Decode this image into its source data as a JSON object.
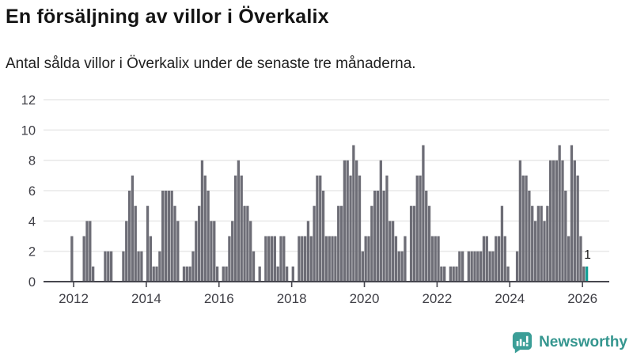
{
  "header": {
    "title": "En försäljning av villor i Överkalix",
    "subtitle": "Antal sålda villor i Överkalix under de senaste tre månaderna."
  },
  "footer": {
    "brand": "Newsworthy",
    "brand_color": "#35968F",
    "icon": "newsworthy-speech-bubble-bar-chart-icon",
    "icon_color": "#3B9E97"
  },
  "chart_data": {
    "type": "bar",
    "title": "En försäljning av villor i Överkalix",
    "subtitle": "Antal sålda villor i Överkalix under de senaste tre månaderna.",
    "unit": "sålda villor (rullande 3 månader)",
    "start_month": "2011-12",
    "ylim": [
      0,
      12
    ],
    "yticks": [
      0,
      2,
      4,
      6,
      8,
      10,
      12
    ],
    "grid": true,
    "x_tick_labels": [
      "2012",
      "2014",
      "2016",
      "2018",
      "2020",
      "2022",
      "2024",
      "2026"
    ],
    "bar_color": "#6D6D76",
    "axis_color": "#46464E",
    "grid_color": "#E8E8E8",
    "tick_label_color": "#3F3F46",
    "values": [
      3,
      0,
      0,
      0,
      3,
      4,
      4,
      1,
      0,
      0,
      0,
      2,
      2,
      2,
      0,
      0,
      0,
      2,
      4,
      6,
      7,
      5,
      2,
      2,
      0,
      5,
      3,
      1,
      1,
      2,
      6,
      6,
      6,
      6,
      5,
      4,
      0,
      1,
      1,
      1,
      2,
      4,
      5,
      8,
      7,
      6,
      4,
      4,
      1,
      0,
      1,
      1,
      3,
      4,
      7,
      8,
      7,
      5,
      5,
      4,
      2,
      0,
      1,
      0,
      3,
      3,
      3,
      3,
      1,
      3,
      3,
      1,
      0,
      1,
      0,
      3,
      3,
      3,
      4,
      3,
      5,
      7,
      7,
      6,
      3,
      3,
      3,
      3,
      5,
      5,
      8,
      8,
      7,
      9,
      8,
      7,
      2,
      3,
      3,
      5,
      6,
      6,
      8,
      6,
      7,
      4,
      4,
      3,
      2,
      2,
      3,
      0,
      5,
      5,
      7,
      7,
      9,
      6,
      5,
      3,
      3,
      3,
      1,
      1,
      0,
      1,
      1,
      1,
      2,
      2,
      0,
      2,
      2,
      2,
      2,
      2,
      3,
      3,
      2,
      2,
      3,
      3,
      5,
      3,
      1,
      0,
      0,
      2,
      8,
      7,
      7,
      6,
      5,
      4,
      5,
      5,
      4,
      5,
      8,
      8,
      8,
      9,
      8,
      6,
      3,
      9,
      8,
      7,
      3,
      1,
      1
    ],
    "highlight": {
      "index": 170,
      "month": "2026-02",
      "value": 1,
      "label": "1",
      "color": "#12A096",
      "label_color": "#1A1A1A"
    },
    "legend": null
  }
}
